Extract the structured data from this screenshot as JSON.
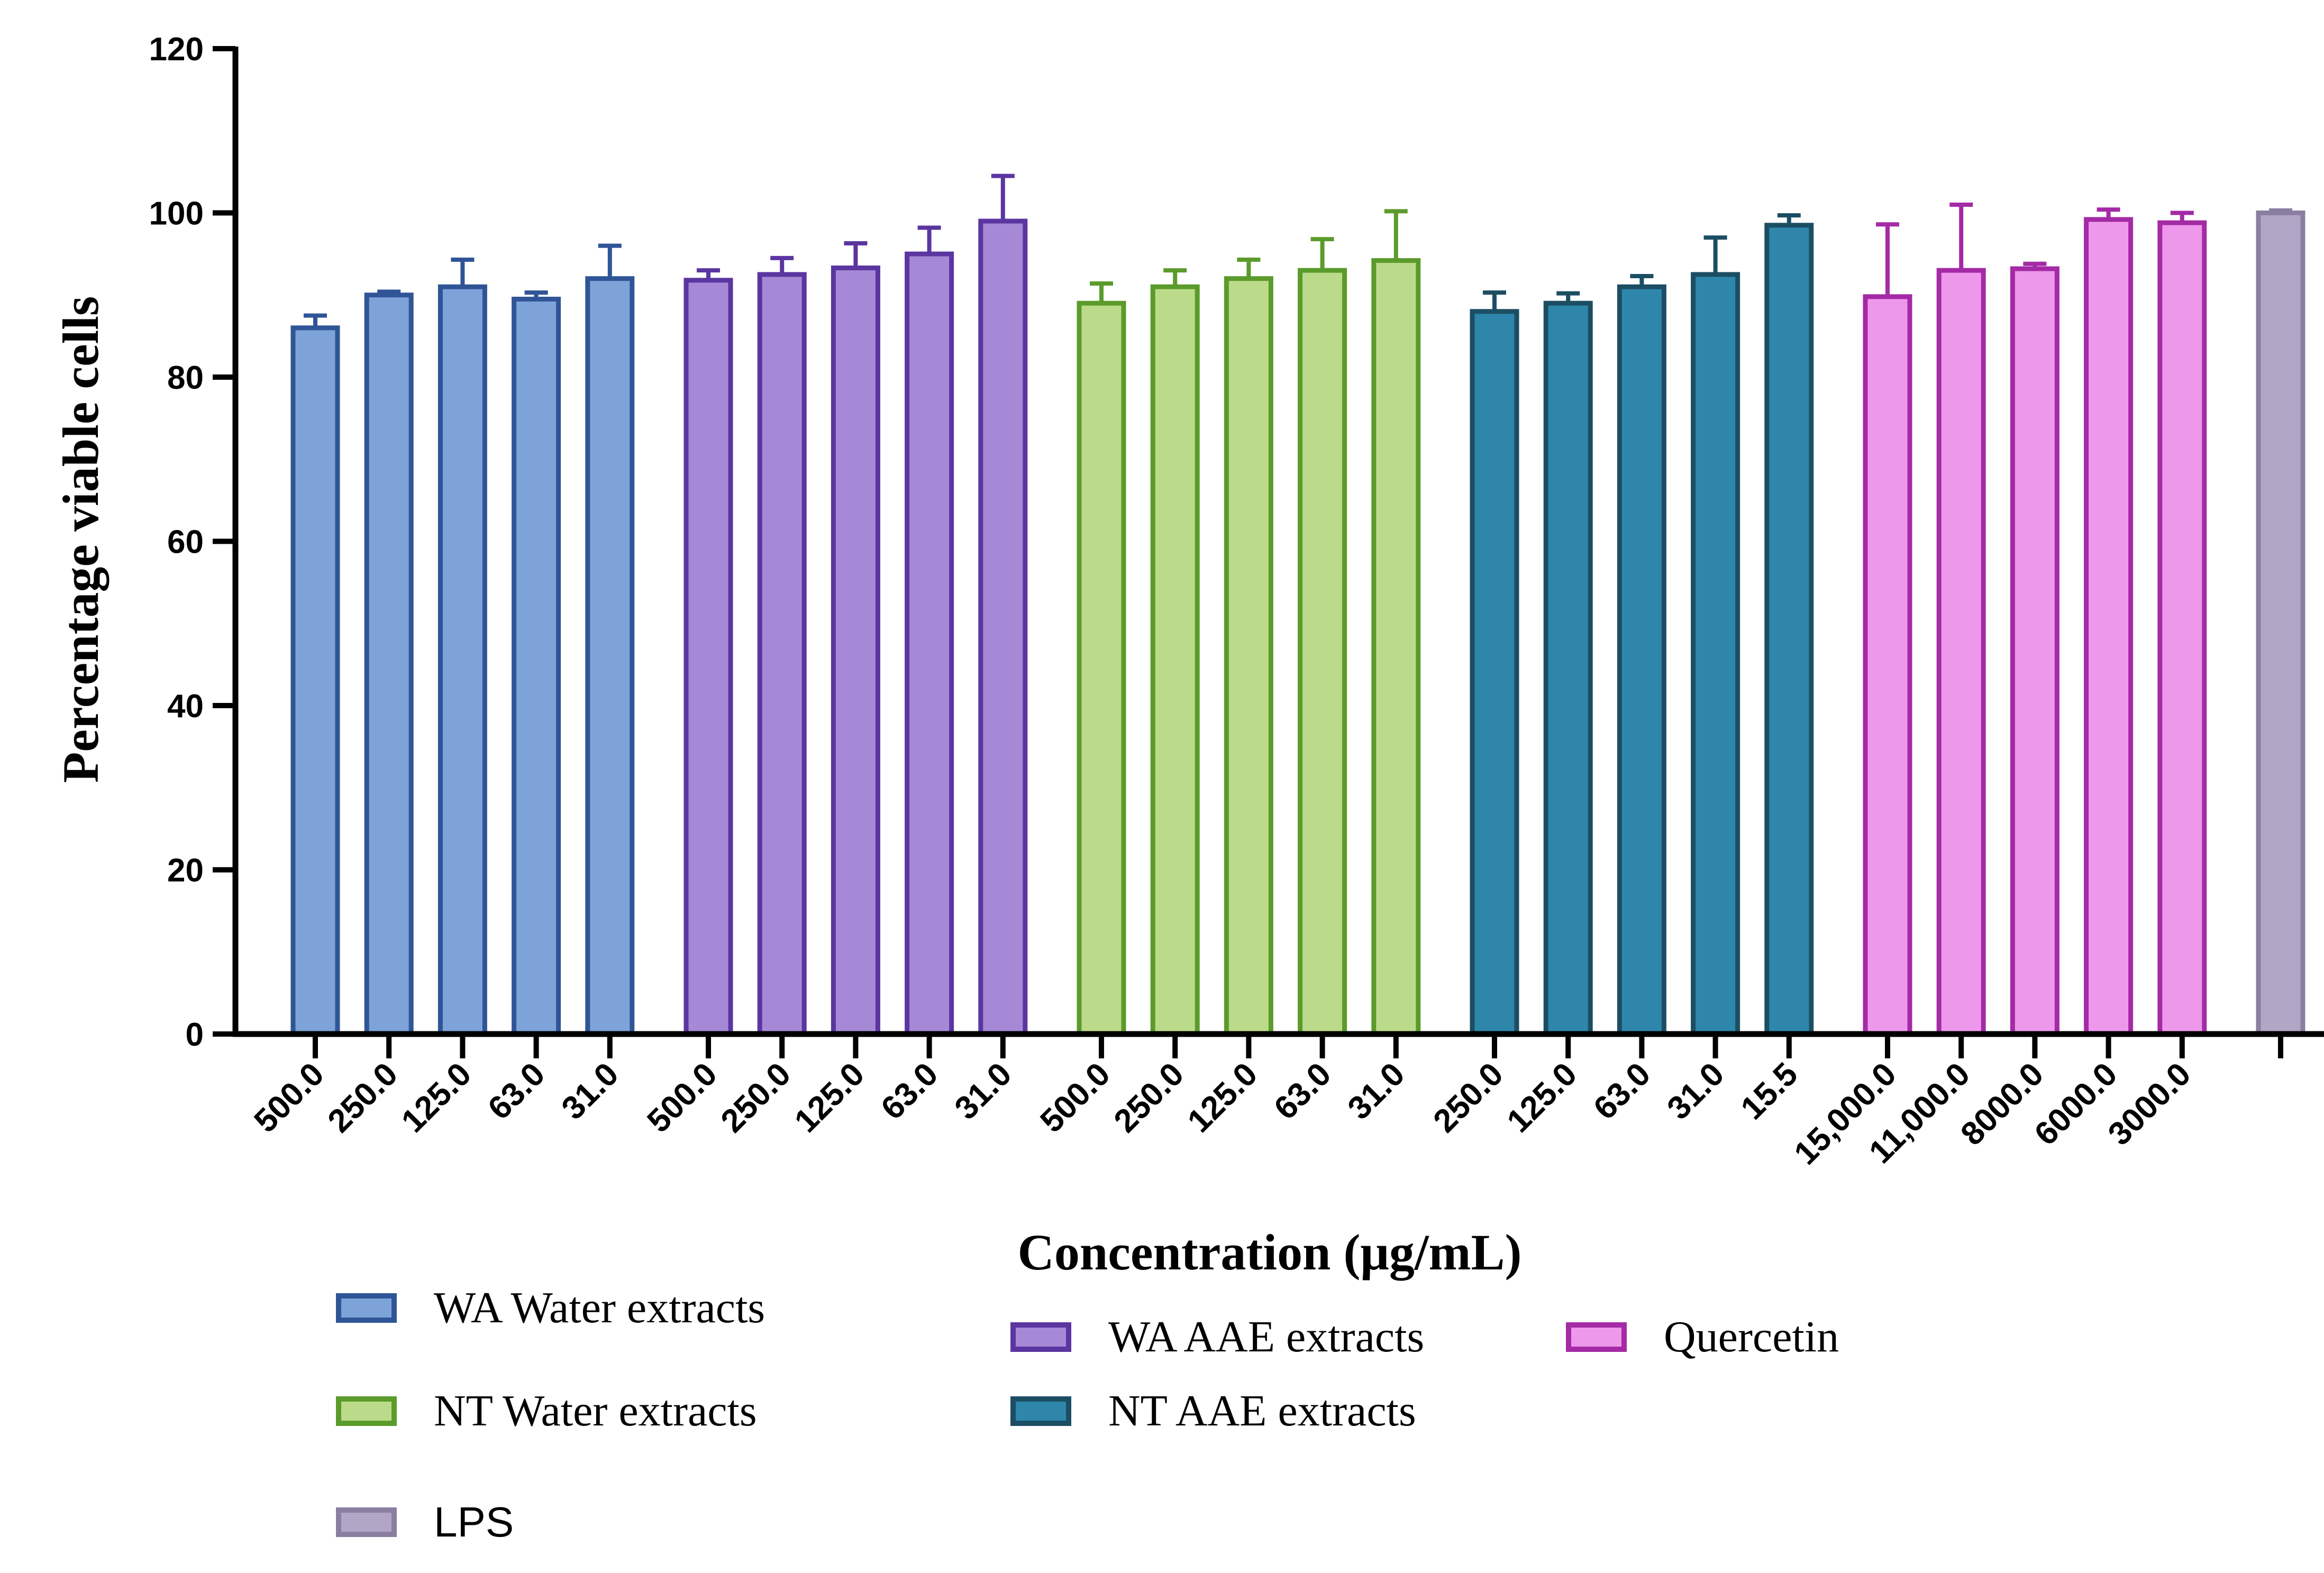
{
  "chart_data": {
    "type": "bar",
    "title": "",
    "ylabel": "Percentage viable cells",
    "xlabel": "Concentration (μg/mL)",
    "ylim": [
      0,
      120
    ],
    "yticks": [
      0,
      20,
      40,
      60,
      80,
      100,
      120
    ],
    "grid": false,
    "series": [
      {
        "name": "WA Water extracts",
        "fill": "#7ea3d8",
        "stroke": "#2f5597",
        "categories": [
          "500.0",
          "250.0",
          "125.0",
          "63.0",
          "31.0"
        ],
        "values": [
          86,
          90,
          91,
          89.5,
          92
        ],
        "errors": [
          1.5,
          0.4,
          3.3,
          0.8,
          4
        ]
      },
      {
        "name": "WA AAE extracts",
        "fill": "#a689d6",
        "stroke": "#5b35a0",
        "categories": [
          "500.0",
          "250.0",
          "125.0",
          "63.0",
          "31.0"
        ],
        "values": [
          91.8,
          92.5,
          93.3,
          95,
          99
        ],
        "errors": [
          1.2,
          2,
          3,
          3.2,
          5.5
        ]
      },
      {
        "name": "NT Water extracts",
        "fill": "#bcdb8a",
        "stroke": "#5b9b2b",
        "categories": [
          "500.0",
          "250.0",
          "125.0",
          "63.0",
          "31.0"
        ],
        "values": [
          89,
          91,
          92,
          93,
          94.2
        ],
        "errors": [
          2.4,
          2,
          2.3,
          3.8,
          6
        ]
      },
      {
        "name": "NT AAE extracts",
        "fill": "#2e86ab",
        "stroke": "#1c4e63",
        "categories": [
          "250.0",
          "125.0",
          "63.0",
          "31.0",
          "15.5"
        ],
        "values": [
          88,
          89,
          91,
          92.5,
          98.5
        ],
        "errors": [
          2.3,
          1.2,
          1.3,
          4.5,
          1.2
        ]
      },
      {
        "name": "Quercetin",
        "fill": "#ee98ec",
        "stroke": "#a42aa6",
        "categories": [
          "15,000.0",
          "11,000.0",
          "8000.0",
          "6000.0",
          "3000.0"
        ],
        "values": [
          89.8,
          93,
          93.2,
          99.2,
          98.8
        ],
        "errors": [
          8.8,
          8,
          0.6,
          1.2,
          1.2
        ]
      },
      {
        "name": "LPS",
        "fill": "#b1a6c6",
        "stroke": "#8a7fa0",
        "categories": [
          ""
        ],
        "values": [
          100
        ],
        "errors": [
          0.3
        ]
      }
    ],
    "legend": {
      "placement": "bottom",
      "entries": [
        {
          "label": "WA Water extracts",
          "series": 0
        },
        {
          "label": "WA AAE extracts",
          "series": 1
        },
        {
          "label": "Quercetin",
          "series": 4
        },
        {
          "label": "NT Water extracts",
          "series": 2
        },
        {
          "label": "NT AAE extracts",
          "series": 3
        },
        {
          "label": "LPS",
          "series": 5
        }
      ]
    }
  }
}
